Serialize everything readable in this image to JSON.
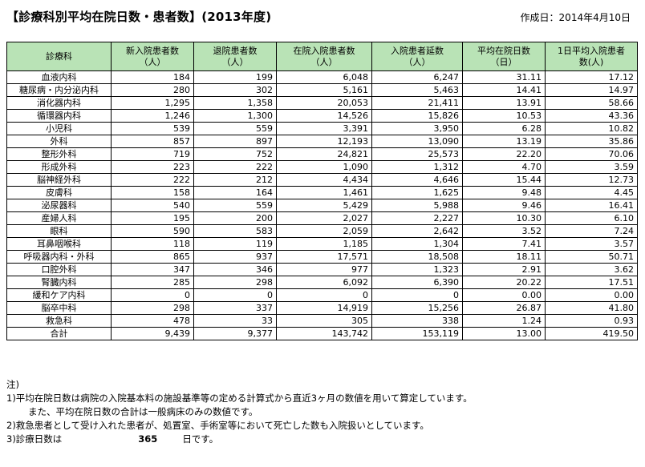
{
  "title": "【診療科別平均在院日数・患者数】(2013年度)",
  "date": "作成日：2014年4月10日",
  "headers": [
    "診療科",
    "新入院患者数\n（人）",
    "退院患者数\n（人）",
    "在院入院患者数\n（人）",
    "入院患者延数\n（人）",
    "平均在院日数\n（日）",
    "1日平均入院患者\n数(人)"
  ],
  "rows": [
    [
      "血液内科",
      "184",
      "199",
      "6,048",
      "6,247",
      "31.11",
      "17.12"
    ],
    [
      "糖尿病・内分泌内科",
      "280",
      "302",
      "5,161",
      "5,463",
      "14.41",
      "14.97"
    ],
    [
      "消化器内科",
      "1,295",
      "1,358",
      "20,053",
      "21,411",
      "13.91",
      "58.66"
    ],
    [
      "循環器内科",
      "1,246",
      "1,300",
      "14,526",
      "15,826",
      "10.53",
      "43.36"
    ],
    [
      "小児科",
      "539",
      "559",
      "3,391",
      "3,950",
      "6.28",
      "10.82"
    ],
    [
      "外科",
      "857",
      "897",
      "12,193",
      "13,090",
      "13.19",
      "35.86"
    ],
    [
      "整形外科",
      "719",
      "752",
      "24,821",
      "25,573",
      "22.20",
      "70.06"
    ],
    [
      "形成外科",
      "223",
      "222",
      "1,090",
      "1,312",
      "4.70",
      "3.59"
    ],
    [
      "脳神経外科",
      "222",
      "212",
      "4,434",
      "4,646",
      "15.44",
      "12.73"
    ],
    [
      "皮膚科",
      "158",
      "164",
      "1,461",
      "1,625",
      "9.48",
      "4.45"
    ],
    [
      "泌尿器科",
      "540",
      "559",
      "5,429",
      "5,988",
      "9.46",
      "16.41"
    ],
    [
      "産婦人科",
      "195",
      "200",
      "2,027",
      "2,227",
      "10.30",
      "6.10"
    ],
    [
      "眼科",
      "590",
      "583",
      "2,059",
      "2,642",
      "3.52",
      "7.24"
    ],
    [
      "耳鼻咽喉科",
      "118",
      "119",
      "1,185",
      "1,304",
      "7.41",
      "3.57"
    ],
    [
      "呼吸器内科・外科",
      "865",
      "937",
      "17,571",
      "18,508",
      "18.11",
      "50.71"
    ],
    [
      "口腔外科",
      "347",
      "346",
      "977",
      "1,323",
      "2.91",
      "3.62"
    ],
    [
      "腎臓内科",
      "285",
      "298",
      "6,092",
      "6,390",
      "20.22",
      "17.51"
    ],
    [
      "緩和ケア内科",
      "0",
      "0",
      "0",
      "0",
      "0.00",
      "0.00"
    ],
    [
      "脳卒中科",
      "298",
      "337",
      "14,919",
      "15,256",
      "26.87",
      "41.80"
    ],
    [
      "救急科",
      "478",
      "33",
      "305",
      "338",
      "1.24",
      "0.93"
    ],
    [
      "合計",
      "9,439",
      "9,377",
      "143,742",
      "153,119",
      "13.00",
      "419.50"
    ]
  ],
  "notes": {
    "heading": "注)",
    "n1": "1)平均在院日数は病院の入院基本料の施設基準等の定める計算式から直近3ヶ月の数値を用いて算定しています。",
    "n1b": "また、平均在院日数の合計は一般病床のみの数値です。",
    "n2": "2)救急患者として受け入れた患者が、処置室、手術室等において死亡した数も入院扱いとしています。",
    "n3_label": "3)診療日数は",
    "n3_value": "365",
    "n3_suffix": "日です。"
  }
}
